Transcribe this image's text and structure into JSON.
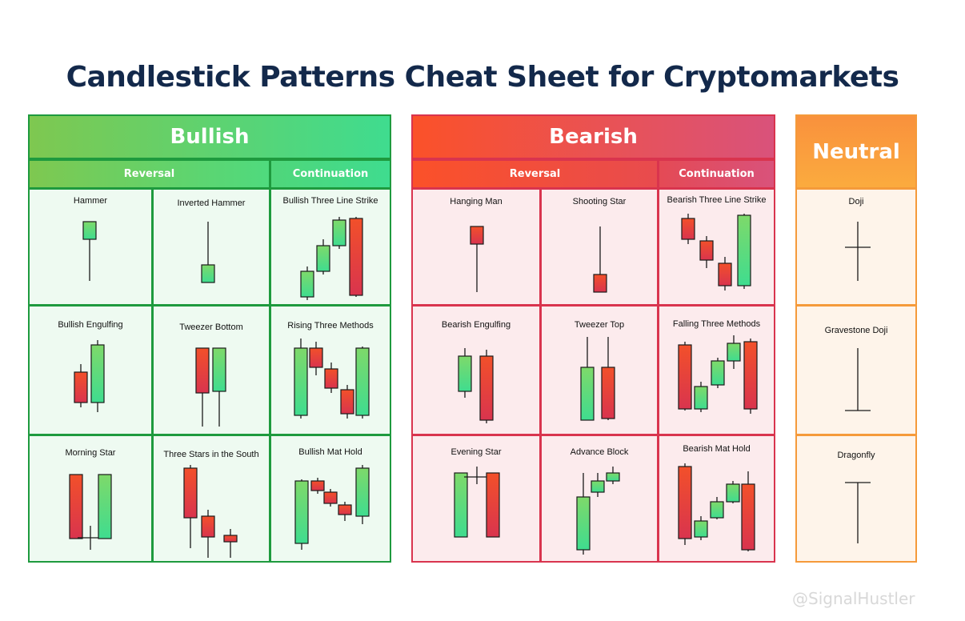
{
  "title": "Candlestick Patterns Cheat Sheet for Cryptomarkets",
  "watermark": "@SignalHustler",
  "colors": {
    "bull_border": "#1e9a3e",
    "bull_bg": "#eefaf1",
    "bear_border": "#d9344e",
    "bear_bg": "#fcebed",
    "neutral_border": "#f59a3a",
    "neutral_bg": "#fef4ea",
    "candle_green": "#4ad870",
    "candle_red": "#e8402c"
  },
  "bullish": {
    "heading": "Bullish",
    "reversal_label": "Reversal",
    "continuation_label": "Continuation",
    "patterns": [
      "Hammer",
      "Inverted Hammer",
      "Bullish Three Line Strike",
      "Bullish Engulfing",
      "Tweezer Bottom",
      "Rising Three Methods",
      "Morning Star",
      "Three Stars in the South",
      "Bullish Mat Hold"
    ]
  },
  "bearish": {
    "heading": "Bearish",
    "reversal_label": "Reversal",
    "continuation_label": "Continuation",
    "patterns": [
      "Hanging Man",
      "Shooting Star",
      "Bearish Three Line Strike",
      "Bearish Engulfing",
      "Tweezer Top",
      "Falling Three Methods",
      "Evening Star",
      "Advance Block",
      "Bearish Mat Hold"
    ]
  },
  "neutral": {
    "heading": "Neutral",
    "patterns": [
      "Doji",
      "Gravestone Doji",
      "Dragonfly"
    ]
  }
}
